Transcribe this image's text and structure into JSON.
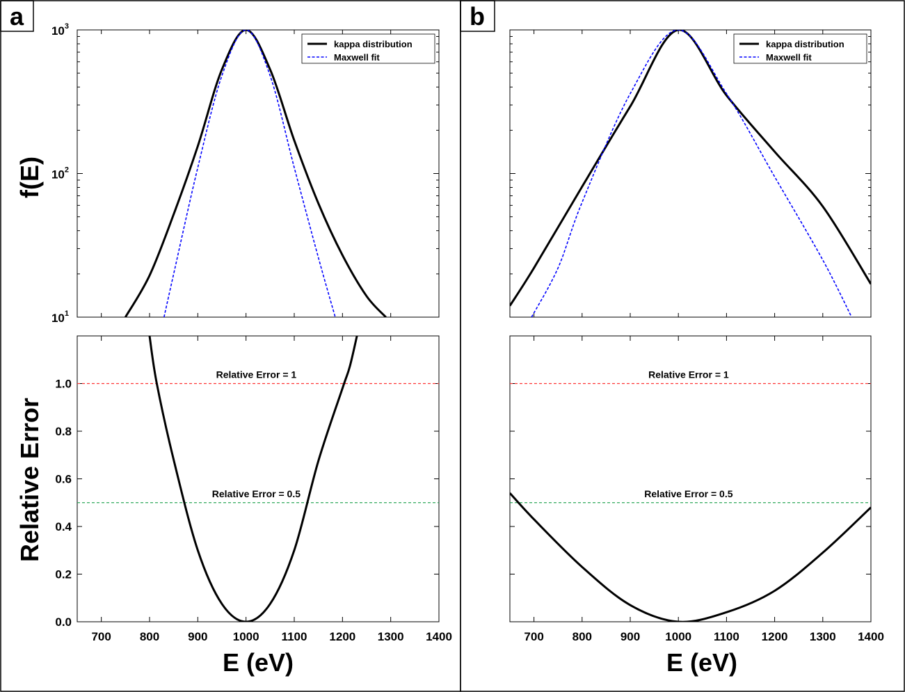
{
  "figure": {
    "panel_labels": [
      "a",
      "b"
    ],
    "ylabel_top": "f(E)",
    "ylabel_bottom": "Relative Error",
    "xlabel": "E (eV)"
  },
  "chart_data": [
    {
      "panel": "a",
      "type": "line",
      "scale_y": "log",
      "xlim": [
        650,
        1400
      ],
      "ylim": [
        10,
        1000
      ],
      "yticks": [
        {
          "base": "10",
          "exp": "1",
          "value": 10
        },
        {
          "base": "10",
          "exp": "2",
          "value": 100
        },
        {
          "base": "10",
          "exp": "3",
          "value": 1000
        }
      ],
      "legend": {
        "placement": "top-right",
        "entries": [
          "kappa distribution",
          "Maxwell fit"
        ]
      },
      "series": [
        {
          "name": "kappa distribution",
          "color": "#000000",
          "style": "solid",
          "peak_x": 1000,
          "peak_y": 1000,
          "x": [
            750,
            800,
            850,
            900,
            950,
            1000,
            1050,
            1100,
            1150,
            1200,
            1250,
            1290
          ],
          "y": [
            10,
            19.5,
            52,
            155,
            530,
            1000,
            530,
            170,
            62,
            27,
            14,
            10
          ]
        },
        {
          "name": "Maxwell fit",
          "color": "#0000ff",
          "style": "dashed",
          "x": [
            830,
            850,
            900,
            950,
            1000,
            1050,
            1100,
            1150,
            1185
          ],
          "y": [
            10,
            20,
            110,
            480,
            1000,
            480,
            110,
            26,
            10
          ]
        }
      ]
    },
    {
      "panel": "b",
      "type": "line",
      "scale_y": "log",
      "xlim": [
        650,
        1400
      ],
      "ylim": [
        10,
        1000
      ],
      "yticks": [],
      "legend": {
        "placement": "top-right",
        "entries": [
          "kappa distribution",
          "Maxwell fit"
        ]
      },
      "series": [
        {
          "name": "kappa distribution",
          "color": "#000000",
          "style": "solid",
          "x": [
            650,
            700,
            800,
            900,
            1000,
            1100,
            1200,
            1300,
            1400
          ],
          "y": [
            12,
            22,
            81,
            293,
            1000,
            350,
            142,
            59,
            17
          ]
        },
        {
          "name": "Maxwell fit",
          "color": "#0000ff",
          "style": "dashed",
          "x": [
            695,
            750,
            800,
            900,
            1000,
            1100,
            1200,
            1300,
            1360
          ],
          "y": [
            10,
            22,
            63,
            360,
            1000,
            360,
            95,
            25,
            10
          ]
        }
      ]
    },
    {
      "panel": "a",
      "type": "line",
      "xlim": [
        650,
        1400
      ],
      "ylim": [
        0,
        1.2
      ],
      "xticks": [
        "700",
        "800",
        "900",
        "1000",
        "1100",
        "1200",
        "1300",
        "1400"
      ],
      "yticks": [
        "0.0",
        "0.2",
        "0.4",
        "0.6",
        "0.8",
        "1.0"
      ],
      "annotations": [
        {
          "text": "Relative Error = 1",
          "y": 1.0,
          "color": "#ff3333"
        },
        {
          "text": "Relative Error = 0.5",
          "y": 0.5,
          "color": "#2ca85a"
        }
      ],
      "series": [
        {
          "name": "",
          "color": "#000000",
          "style": "solid",
          "x": [
            800,
            815,
            850,
            900,
            950,
            1000,
            1050,
            1100,
            1150,
            1200,
            1215,
            1230
          ],
          "y": [
            1.2,
            1.0,
            0.68,
            0.3,
            0.075,
            0.0,
            0.075,
            0.3,
            0.675,
            0.98,
            1.07,
            1.2
          ]
        }
      ]
    },
    {
      "panel": "b",
      "type": "line",
      "xlim": [
        650,
        1400
      ],
      "ylim": [
        0,
        1.2
      ],
      "xticks": [
        "700",
        "800",
        "900",
        "1000",
        "1100",
        "1200",
        "1300",
        "1400"
      ],
      "yticks": [],
      "annotations": [
        {
          "text": "Relative Error = 1",
          "y": 1.0,
          "color": "#ff3333"
        },
        {
          "text": "Relative Error = 0.5",
          "y": 0.5,
          "color": "#2ca85a"
        }
      ],
      "series": [
        {
          "name": "",
          "color": "#000000",
          "style": "solid",
          "x": [
            650,
            700,
            800,
            900,
            1000,
            1100,
            1200,
            1300,
            1400
          ],
          "y": [
            0.54,
            0.43,
            0.23,
            0.07,
            0.0,
            0.04,
            0.13,
            0.29,
            0.48
          ]
        }
      ]
    }
  ]
}
